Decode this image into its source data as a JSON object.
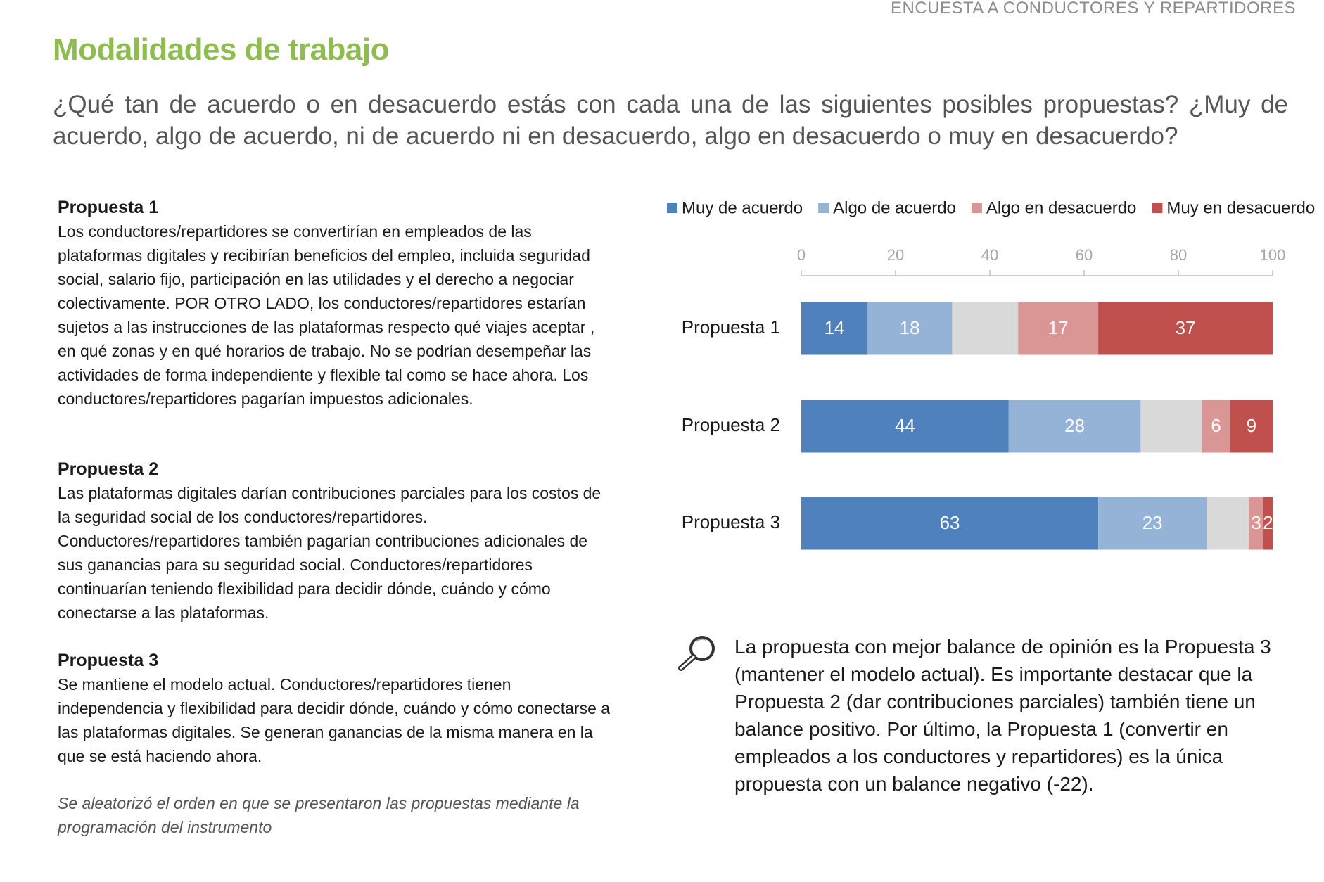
{
  "header": "ENCUESTA A CONDUCTORES Y REPARTIDORES",
  "title": "Modalidades de trabajo",
  "question": "¿Qué tan de acuerdo o en desacuerdo estás con cada una de las siguientes posibles propuestas? ¿Muy de acuerdo, algo de acuerdo, ni de acuerdo ni en desacuerdo, algo en desacuerdo o muy en desacuerdo?",
  "proposals": [
    {
      "heading": "Propuesta 1",
      "text": "Los conductores/repartidores se convertirían en empleados de las plataformas digitales y recibirían beneficios del empleo, incluida seguridad social, salario fijo, participación en las utilidades y el derecho a negociar colectivamente. POR OTRO LADO, los conductores/repartidores estarían sujetos a las instrucciones de las plataformas respecto qué viajes aceptar , en qué zonas y en qué horarios de trabajo. No se podrían desempeñar las actividades de forma independiente y flexible tal como se hace ahora. Los conductores/repartidores pagarían impuestos adicionales."
    },
    {
      "heading": "Propuesta 2",
      "text": "Las plataformas digitales darían contribuciones parciales para los costos de la seguridad social de los conductores/repartidores. Conductores/repartidores también pagarían contribuciones adicionales de sus ganancias para su seguridad social. Conductores/repartidores continuarían teniendo flexibilidad para decidir dónde, cuándo y cómo conectarse a las plataformas."
    },
    {
      "heading": "Propuesta 3",
      "text": "Se mantiene el modelo actual. Conductores/repartidores tienen independencia y flexibilidad para decidir dónde, cuándo y cómo conectarse a las plataformas digitales. Se generan ganancias de la misma manera en la que se está haciendo ahora."
    }
  ],
  "note": "Se aleatorizó el orden en que se presentaron las propuestas mediante la programación del instrumento",
  "insight": "La propuesta con mejor balance de opinión es la Propuesta 3 (mantener el modelo actual). Es importante destacar que la Propuesta 2 (dar contribuciones parciales) también tiene un balance positivo. Por último, la Propuesta 1 (convertir en empleados a los conductores y repartidores) es la única propuesta con un balance negativo (-22).",
  "chart_data": {
    "type": "bar",
    "orientation": "horizontal",
    "stacked": true,
    "legend": "top",
    "categories": [
      "Propuesta 1",
      "Propuesta 2",
      "Propuesta 3"
    ],
    "xlim": [
      0,
      100
    ],
    "xticks": [
      0,
      20,
      40,
      60,
      80,
      100
    ],
    "series": [
      {
        "name": "Muy de acuerdo",
        "color": "#4f81bd",
        "values": [
          14,
          44,
          63
        ]
      },
      {
        "name": "Algo de acuerdo",
        "color": "#95b3d7",
        "values": [
          18,
          28,
          23
        ]
      },
      {
        "name": null,
        "color": "#d9d9d9",
        "labels": false,
        "values": [
          14,
          13,
          9
        ]
      },
      {
        "name": "Algo en desacuerdo",
        "color": "#da9694",
        "values": [
          17,
          6,
          3
        ]
      },
      {
        "name": "Muy en desacuerdo",
        "color": "#c0504d",
        "values": [
          37,
          9,
          2
        ]
      }
    ]
  }
}
